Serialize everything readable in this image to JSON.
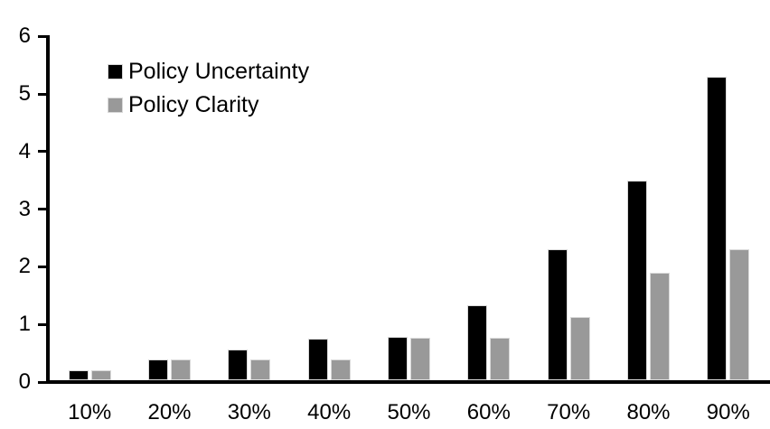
{
  "chart_data": {
    "type": "bar",
    "title": "",
    "xlabel": "",
    "ylabel": "",
    "categories": [
      "10%",
      "20%",
      "30%",
      "40%",
      "50%",
      "60%",
      "70%",
      "80%",
      "90%"
    ],
    "series": [
      {
        "name": "Policy Uncertainty",
        "color": "#000000",
        "values": [
          0.2,
          0.39,
          0.57,
          0.76,
          0.78,
          1.33,
          2.3,
          3.5,
          5.3
        ]
      },
      {
        "name": "Policy Clarity",
        "color": "#999999",
        "values": [
          0.2,
          0.39,
          0.39,
          0.39,
          0.77,
          0.77,
          1.13,
          1.9,
          2.3
        ]
      }
    ],
    "ylim": [
      0,
      6
    ],
    "y_ticks": [
      0,
      1,
      2,
      3,
      4,
      5,
      6
    ],
    "grid": false,
    "legend_position": "top-left",
    "axis_color": "#000000",
    "background_color": "#FFFFFF",
    "bar_edge_color": "#D9D9D9"
  }
}
